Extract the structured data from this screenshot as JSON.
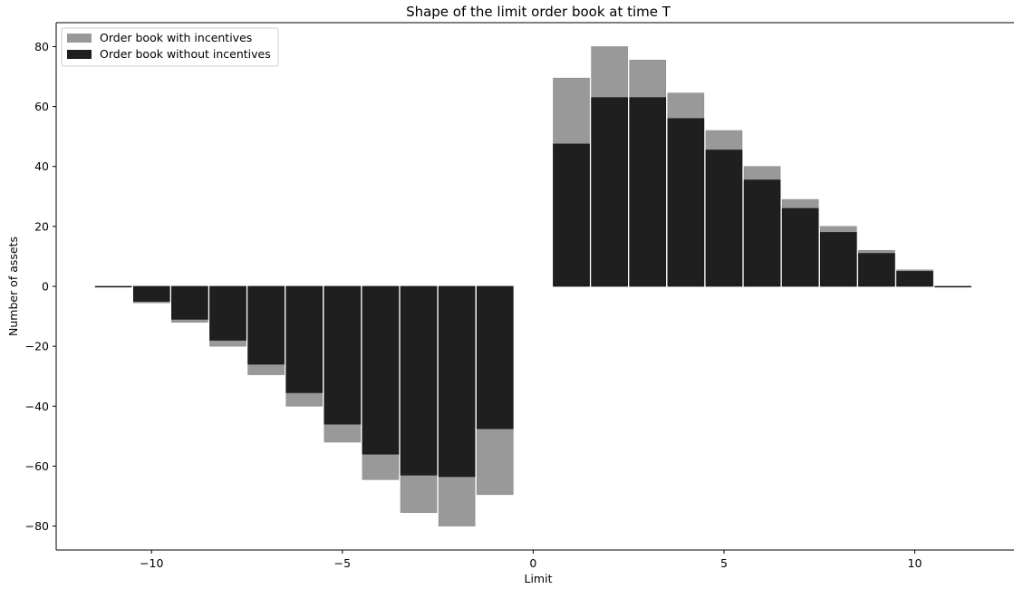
{
  "chart_data": {
    "type": "bar",
    "title": "Shape of the limit order book at time T",
    "xlabel": "Limit",
    "ylabel": "Number of assets",
    "xlim": [
      -12.5,
      12.6
    ],
    "ylim": [
      -88,
      88
    ],
    "xticks": [
      -10,
      -5,
      0,
      5,
      10
    ],
    "xtick_labels": [
      "−10",
      "−5",
      "0",
      "5",
      "10"
    ],
    "yticks": [
      -80,
      -60,
      -40,
      -20,
      0,
      20,
      40,
      60,
      80
    ],
    "ytick_labels": [
      "−80",
      "−60",
      "−40",
      "−20",
      "0",
      "20",
      "40",
      "60",
      "80"
    ],
    "grid": false,
    "legend_position": "top-left",
    "x": [
      -11,
      -10,
      -9,
      -8,
      -7,
      -6,
      -5,
      -4,
      -3,
      -2,
      -1,
      1,
      2,
      3,
      4,
      5,
      6,
      7,
      8,
      9,
      10,
      11
    ],
    "series": [
      {
        "name": "Order book with incentives",
        "color": "#999999",
        "values": [
          0,
          -5.5,
          -12,
          -20,
          -29.5,
          -40,
          -52,
          -64.5,
          -75.5,
          -80,
          -69.5,
          69.5,
          80,
          75.5,
          64.5,
          52,
          40,
          29,
          20,
          12,
          5.5,
          0
        ]
      },
      {
        "name": "Order book without incentives",
        "color": "#1f1f1f",
        "values": [
          0,
          -5,
          -11,
          -18,
          -26,
          -35.5,
          -46,
          -56,
          -63,
          -63.5,
          -47.5,
          47.5,
          63,
          63,
          56,
          45.5,
          35.5,
          26,
          18,
          11,
          5,
          0
        ]
      }
    ]
  }
}
